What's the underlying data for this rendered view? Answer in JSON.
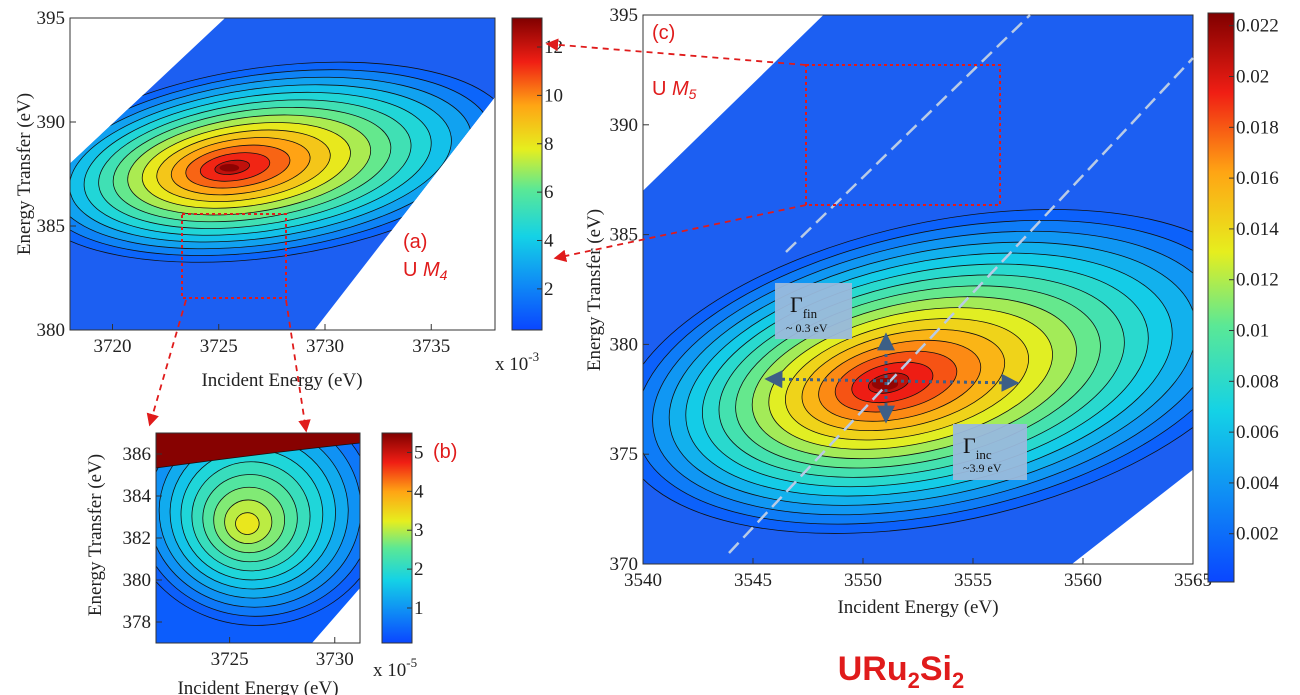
{
  "material_label": {
    "main": "URu",
    "sub1": "2",
    "mid": "Si",
    "sub2": "2"
  },
  "chart_data": [
    {
      "type": "heatmap",
      "panel_label": "(a)",
      "edge_label": "U ",
      "edge_italic": "M",
      "edge_sub": "4",
      "xlabel": "Incident Energy (eV)",
      "ylabel": "Energy Transfer (eV)",
      "xlim": [
        3718,
        3738
      ],
      "ylim": [
        380,
        395
      ],
      "xticks": [
        "3720",
        "3725",
        "3730",
        "3735"
      ],
      "xtick_values": [
        3720,
        3725,
        3730,
        3735
      ],
      "yticks": [
        "380",
        "385",
        "390",
        "395"
      ],
      "ytick_values": [
        380,
        385,
        390,
        395
      ],
      "colorbar": {
        "ticks": [
          "2",
          "4",
          "6",
          "8",
          "10",
          "12"
        ],
        "tick_values": [
          2,
          4,
          6,
          8,
          10,
          12
        ],
        "range": [
          0.3,
          13.2
        ],
        "multiplier": "x  10",
        "multiplier_exp": "-3"
      },
      "peak": {
        "incident_energy": 3725.5,
        "energy_transfer": 387.8,
        "value": 13
      }
    },
    {
      "type": "heatmap",
      "panel_label": "(b)",
      "xlabel": "Incident Energy (eV)",
      "ylabel": "Energy Transfer (eV)",
      "xlim": [
        3721.5,
        3731.2
      ],
      "ylim": [
        377,
        387
      ],
      "xticks": [
        "3725",
        "3730"
      ],
      "xtick_values": [
        3725,
        3730
      ],
      "yticks": [
        "378",
        "380",
        "382",
        "384",
        "386"
      ],
      "ytick_values": [
        378,
        380,
        382,
        384,
        386
      ],
      "colorbar": {
        "ticks": [
          "1",
          "2",
          "3",
          "4",
          "5"
        ],
        "tick_values": [
          1,
          2,
          3,
          4,
          5
        ],
        "range": [
          0.1,
          5.5
        ],
        "multiplier": "x  10",
        "multiplier_exp": "-5"
      },
      "peak": {
        "incident_energy": 3725.8,
        "energy_transfer": 382.6,
        "value": 3.6
      }
    },
    {
      "type": "heatmap",
      "panel_label": "(c)",
      "edge_label": "U ",
      "edge_italic": "M",
      "edge_sub": "5",
      "xlabel": "Incident Energy (eV)",
      "ylabel": "Energy Transfer (eV)",
      "xlim": [
        3540,
        3565
      ],
      "ylim": [
        370,
        395
      ],
      "xticks": [
        "3540",
        "3545",
        "3550",
        "3555",
        "3560",
        "3565"
      ],
      "xtick_values": [
        3540,
        3545,
        3550,
        3555,
        3560,
        3565
      ],
      "yticks": [
        "370",
        "375",
        "380",
        "385",
        "390",
        "395"
      ],
      "ytick_values": [
        370,
        375,
        380,
        385,
        390,
        395
      ],
      "colorbar": {
        "ticks": [
          "0.002",
          "0.004",
          "0.006",
          "0.008",
          "0.01",
          "0.012",
          "0.014",
          "0.016",
          "0.018",
          "0.02",
          "0.022"
        ],
        "tick_values": [
          0.002,
          0.004,
          0.006,
          0.008,
          0.01,
          0.012,
          0.014,
          0.016,
          0.018,
          0.02,
          0.022
        ],
        "range": [
          0.0001,
          0.0225
        ]
      },
      "peak": {
        "incident_energy": 3551,
        "energy_transfer": 378.2,
        "value": 0.022
      },
      "annotations": [
        {
          "symbol": "Γ",
          "sub": "fin",
          "value": "~ 0.3 eV"
        },
        {
          "symbol": "Γ",
          "sub": "inc",
          "value": "~3.9 eV"
        }
      ]
    }
  ],
  "colors": {
    "background_low": "#1c5ff2",
    "highlight_box": "#e01b1b",
    "diagonal_guide": "#b9cbe6",
    "annotation_box": "#9ab9dc",
    "annotation_arrow": "#3d5f86"
  }
}
